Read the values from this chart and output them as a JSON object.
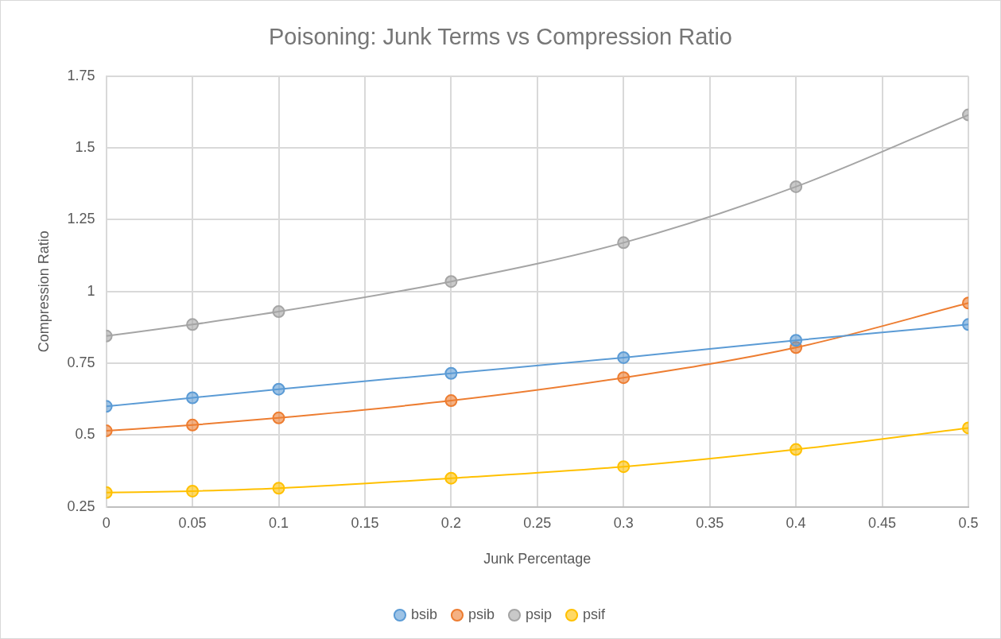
{
  "chart_data": {
    "type": "line",
    "title": "Poisoning: Junk Terms vs Compression Ratio",
    "xlabel": "Junk Percentage",
    "ylabel": "Compression Ratio",
    "x": [
      0,
      0.05,
      0.1,
      0.2,
      0.3,
      0.4,
      0.5
    ],
    "series": [
      {
        "name": "bsib",
        "color": "#5b9bd5",
        "values": [
          0.6,
          0.63,
          0.66,
          0.715,
          0.77,
          0.83,
          0.885
        ]
      },
      {
        "name": "psib",
        "color": "#ed7d31",
        "values": [
          0.515,
          0.535,
          0.56,
          0.62,
          0.7,
          0.805,
          0.96
        ]
      },
      {
        "name": "psip",
        "color": "#a5a5a5",
        "values": [
          0.845,
          0.885,
          0.93,
          1.035,
          1.17,
          1.365,
          1.615
        ]
      },
      {
        "name": "psif",
        "color": "#ffc000",
        "values": [
          0.3,
          0.305,
          0.315,
          0.35,
          0.39,
          0.45,
          0.525
        ]
      }
    ],
    "xlim": [
      0,
      0.5
    ],
    "xticks": [
      0,
      0.05,
      0.1,
      0.15,
      0.2,
      0.25,
      0.3,
      0.35,
      0.4,
      0.45,
      0.5
    ],
    "ylim": [
      0.25,
      1.75
    ],
    "yticks": [
      0.25,
      0.5,
      0.75,
      1,
      1.25,
      1.5,
      1.75
    ],
    "grid": true,
    "legend": "bottom",
    "marker": "circle",
    "line_style": "solid"
  }
}
